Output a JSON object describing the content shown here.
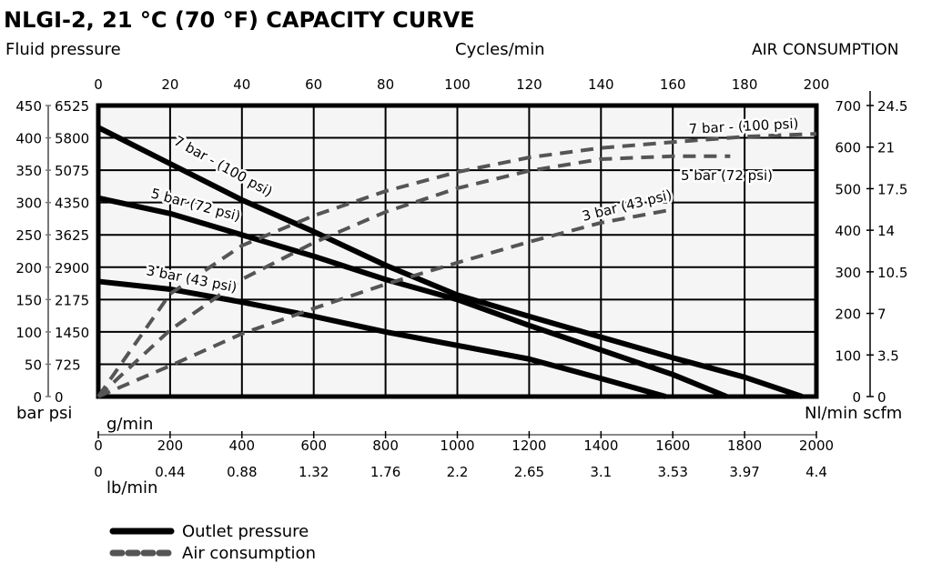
{
  "chart_data": {
    "type": "line",
    "title": "NLGI-2, 21 °C (70 °F) CAPACITY CURVE",
    "left_axis_title": "Fluid pressure",
    "top_axis_title": "Cycles/min",
    "right_axis_title": "AIR CONSUMPTION",
    "left_units": "bar psi",
    "right_units": "Nl/min scfm",
    "bottom_axis1_label": "g/min",
    "bottom_axis2_label": "lb/min",
    "xlim": [
      0,
      200
    ],
    "ylim_bar": [
      0,
      450
    ],
    "ylim_air": [
      0,
      700
    ],
    "grid": true,
    "top_ticks": [
      "0",
      "20",
      "40",
      "60",
      "80",
      "100",
      "120",
      "140",
      "160",
      "180",
      "200"
    ],
    "left_ticks_bar": [
      "0",
      "50",
      "100",
      "150",
      "200",
      "250",
      "300",
      "350",
      "400",
      "450"
    ],
    "left_ticks_psi": [
      "0",
      "725",
      "1450",
      "2175",
      "2900",
      "3625",
      "4350",
      "5075",
      "5800",
      "6525"
    ],
    "right_ticks_nl": [
      "0",
      "100",
      "200",
      "300",
      "400",
      "500",
      "600",
      "700"
    ],
    "right_ticks_scfm": [
      "0",
      "3.5",
      "7",
      "10.5",
      "14",
      "17.5",
      "21",
      "24.5"
    ],
    "bottom_ticks_g": [
      "0",
      "200",
      "400",
      "600",
      "800",
      "1000",
      "1200",
      "1400",
      "1600",
      "1800",
      "2000"
    ],
    "bottom_ticks_lb": [
      "0",
      "0.44",
      "0.88",
      "1.32",
      "1.76",
      "2.2",
      "2.65",
      "3.1",
      "3.53",
      "3.97",
      "4.4"
    ],
    "series": [
      {
        "name": "7 bar - (100 psi)",
        "kind": "outlet",
        "x": [
          0,
          20,
          40,
          60,
          80,
          100,
          120,
          140,
          160,
          180,
          196
        ],
        "y": [
          416,
          360,
          304,
          255,
          203,
          157,
          124,
          92,
          60,
          30,
          0
        ]
      },
      {
        "name": "5 bar (72 psi)",
        "kind": "outlet",
        "x": [
          0,
          20,
          40,
          60,
          80,
          100,
          120,
          140,
          160,
          175
        ],
        "y": [
          307,
          283,
          250,
          217,
          181,
          150,
          110,
          72,
          34,
          0
        ]
      },
      {
        "name": "3 bar (43 psi)",
        "kind": "outlet",
        "x": [
          0,
          20,
          40,
          60,
          80,
          100,
          120,
          140,
          158
        ],
        "y": [
          178,
          166,
          146,
          124,
          100,
          79,
          58,
          28,
          0
        ]
      },
      {
        "name": "7 bar - (100 psi)",
        "kind": "air",
        "x": [
          0,
          20,
          40,
          60,
          80,
          100,
          120,
          140,
          160,
          180,
          200
        ],
        "y": [
          0,
          247,
          363,
          435,
          494,
          540,
          575,
          598,
          612,
          625,
          632
        ]
      },
      {
        "name": "5 bar (72 psi)",
        "kind": "air",
        "x": [
          0,
          20,
          40,
          60,
          80,
          100,
          120,
          140,
          160,
          176
        ],
        "y": [
          0,
          160,
          282,
          370,
          444,
          501,
          543,
          571,
          578,
          578
        ]
      },
      {
        "name": "3 bar (43 psi)",
        "kind": "air",
        "x": [
          0,
          20,
          40,
          60,
          80,
          100,
          120,
          140,
          160
        ],
        "y": [
          0,
          74,
          151,
          212,
          270,
          322,
          372,
          418,
          450
        ]
      }
    ],
    "legend": [
      {
        "label": "Outlet pressure",
        "color": "#000000",
        "style": "solid"
      },
      {
        "label": "Air consumption",
        "color": "#555555",
        "style": "dashed"
      }
    ],
    "colors": {
      "outlet": "#000000",
      "air": "#555555",
      "plot_bg": "#f5f5f5"
    }
  }
}
